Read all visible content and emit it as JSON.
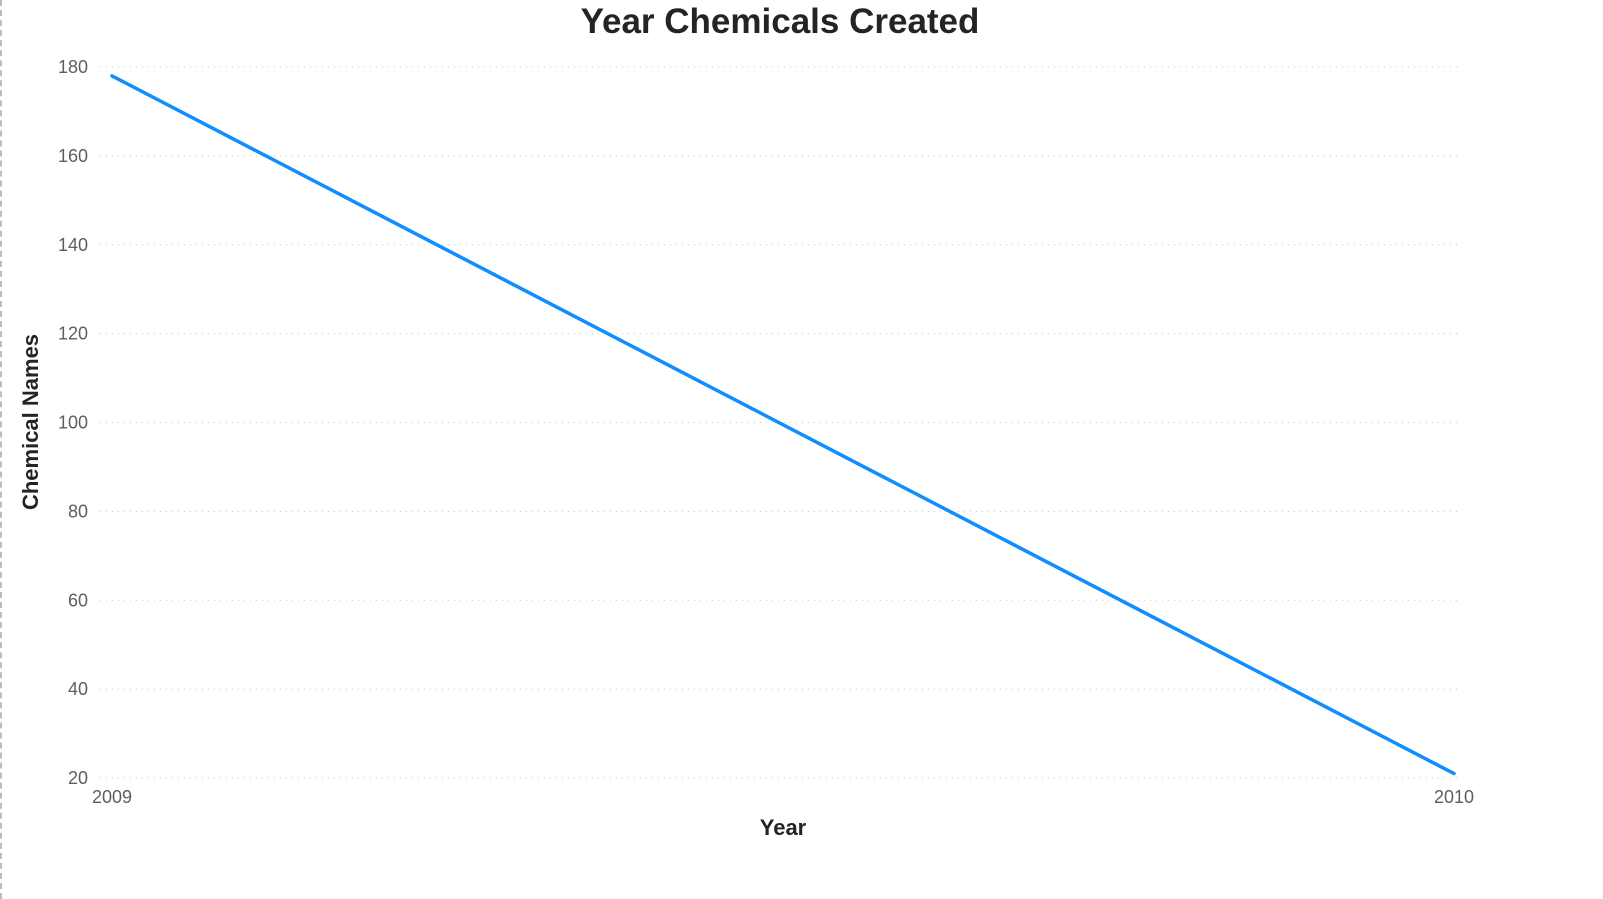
{
  "chart_data": {
    "type": "line",
    "title": "Year Chemicals Created",
    "xlabel": "Year",
    "ylabel": "Chemical Names",
    "x": [
      "2009",
      "2010"
    ],
    "series": [
      {
        "values": [
          178,
          21
        ]
      }
    ],
    "ylim": [
      20,
      180
    ],
    "yticks": [
      20,
      40,
      60,
      80,
      100,
      120,
      140,
      160,
      180
    ],
    "grid": true,
    "legend": "none",
    "colors": {
      "line": "#118DFF"
    }
  }
}
